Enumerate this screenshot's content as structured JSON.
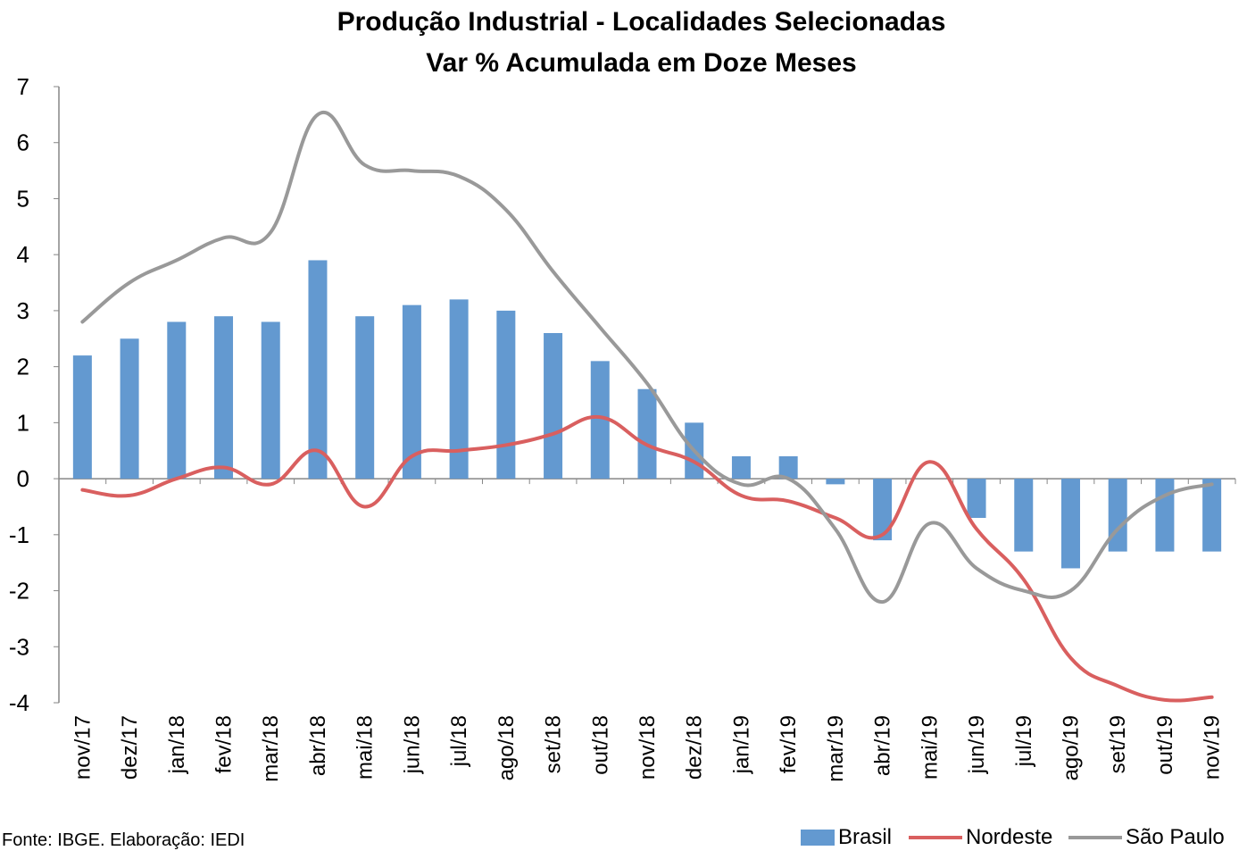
{
  "chart_data": {
    "type": "bar",
    "title": "Produção Industrial - Localidades Selecionadas",
    "subtitle": "Var % Acumulada em Doze Meses",
    "categories": [
      "nov/17",
      "dez/17",
      "jan/18",
      "fev/18",
      "mar/18",
      "abr/18",
      "mai/18",
      "jun/18",
      "jul/18",
      "ago/18",
      "set/18",
      "out/18",
      "nov/18",
      "dez/18",
      "jan/19",
      "fev/19",
      "mar/19",
      "abr/19",
      "mai/19",
      "jun/19",
      "jul/19",
      "ago/19",
      "set/19",
      "out/19",
      "nov/19"
    ],
    "ylim": [
      -4,
      7
    ],
    "yticks": [
      7,
      6,
      5,
      4,
      3,
      2,
      1,
      0,
      -1,
      -2,
      -3,
      -4
    ],
    "grid": false,
    "legend_position": "bottom-right",
    "series": [
      {
        "name": "Brasil",
        "kind": "bar",
        "color": "#6399d0",
        "values": [
          2.2,
          2.5,
          2.8,
          2.9,
          2.8,
          3.9,
          2.9,
          3.1,
          3.2,
          3.0,
          2.6,
          2.1,
          1.6,
          1.0,
          0.4,
          0.4,
          -0.1,
          -1.1,
          0.0,
          -0.7,
          -1.3,
          -1.6,
          -1.3,
          -1.3,
          -1.3
        ]
      },
      {
        "name": "Nordeste",
        "kind": "line",
        "color": "#d95f5f",
        "values": [
          -0.2,
          -0.3,
          0.0,
          0.2,
          -0.1,
          0.5,
          -0.5,
          0.4,
          0.5,
          0.6,
          0.8,
          1.1,
          0.6,
          0.3,
          -0.3,
          -0.4,
          -0.7,
          -1.0,
          0.3,
          -0.9,
          -1.8,
          -3.2,
          -3.7,
          -3.95,
          -3.9
        ]
      },
      {
        "name": "São Paulo",
        "kind": "line",
        "color": "#999999",
        "values": [
          2.8,
          3.5,
          3.9,
          4.3,
          4.4,
          6.5,
          5.6,
          5.5,
          5.4,
          4.8,
          3.7,
          2.7,
          1.7,
          0.5,
          -0.1,
          0.0,
          -0.9,
          -2.2,
          -0.8,
          -1.6,
          -2.0,
          -2.0,
          -0.9,
          -0.3,
          -0.1
        ]
      }
    ]
  },
  "source": "Fonte: IBGE. Elaboração: IEDI"
}
